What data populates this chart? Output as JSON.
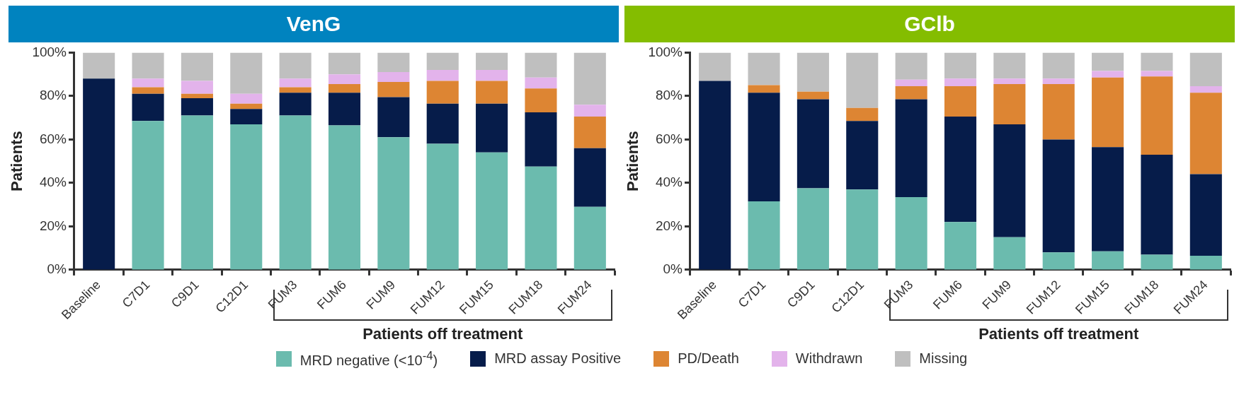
{
  "chart_data": [
    {
      "type": "bar",
      "title": "VenG",
      "ylabel": "Patients",
      "xlabel": "Patients off treatment",
      "stacked": true,
      "grid": false,
      "legend": "bottom",
      "categories": [
        "Baseline",
        "C7D1",
        "C9D1",
        "C12D1",
        "FUM3",
        "FUM6",
        "FUM9",
        "FUM12",
        "FUM15",
        "FUM18",
        "FUM24"
      ],
      "ylim": [
        0,
        100
      ],
      "yticks": [
        {
          "value": 0,
          "label": "0%"
        },
        {
          "value": 20,
          "label": "20%"
        },
        {
          "value": 40,
          "label": "40%"
        },
        {
          "value": 60,
          "label": "60%"
        },
        {
          "value": 80,
          "label": "80%"
        },
        {
          "value": 100,
          "label": "100%"
        }
      ],
      "series": [
        {
          "name": "MRD negative (<10$^{-4}$)",
          "color": "#6bbbae",
          "values": [
            0,
            68.5,
            71,
            67,
            71,
            66.5,
            61,
            58,
            54,
            47.5,
            29
          ]
        },
        {
          "name": "MRD assay Positive",
          "color": "#061c4a",
          "values": [
            88,
            12.5,
            8,
            7,
            10.5,
            15,
            18.5,
            18.5,
            22.5,
            25,
            27
          ]
        },
        {
          "name": "PD/Death",
          "color": "#dd8533",
          "values": [
            0,
            3,
            2,
            2.5,
            2.5,
            4,
            7,
            10.5,
            10.5,
            11,
            14.5
          ]
        },
        {
          "name": "Withdrawn",
          "color": "#e3b3eb",
          "values": [
            0,
            4,
            6,
            4.5,
            4,
            4.5,
            4.5,
            5,
            5,
            5,
            5.5
          ]
        },
        {
          "name": "Missing",
          "color": "#bfbfbf",
          "values": [
            12,
            12,
            13,
            19,
            12,
            10,
            9,
            8,
            8,
            11.5,
            24
          ]
        }
      ]
    },
    {
      "type": "bar",
      "title": "GClb",
      "ylabel": "Patients",
      "xlabel": "Patients off treatment",
      "stacked": true,
      "grid": false,
      "categories": [
        "Baseline",
        "C7D1",
        "C9D1",
        "C12D1",
        "FUM3",
        "FUM6",
        "FUM9",
        "FUM12",
        "FUM15",
        "FUM18",
        "FUM24"
      ],
      "ylim": [
        0,
        100
      ],
      "yticks": [
        {
          "value": 0,
          "label": "0%"
        },
        {
          "value": 20,
          "label": "20%"
        },
        {
          "value": 40,
          "label": "40%"
        },
        {
          "value": 60,
          "label": "60%"
        },
        {
          "value": 80,
          "label": "80%"
        },
        {
          "value": 100,
          "label": "100%"
        }
      ],
      "series": [
        {
          "color": "#6bbbae",
          "values": [
            0,
            31.5,
            37.5,
            37,
            33.5,
            22,
            15,
            8,
            8.5,
            7,
            6.5
          ]
        },
        {
          "color": "#061c4a",
          "values": [
            87,
            50,
            41,
            31.5,
            45,
            48.5,
            52,
            52,
            48,
            46,
            37.5
          ]
        },
        {
          "color": "#dd8533",
          "values": [
            0,
            3.5,
            3.5,
            6,
            6,
            14,
            18.5,
            25.5,
            32,
            36,
            37.5
          ]
        },
        {
          "color": "#e3b3eb",
          "values": [
            0,
            0,
            0,
            0,
            3,
            3.5,
            2.5,
            2.5,
            3,
            2.5,
            3
          ]
        },
        {
          "color": "#bfbfbf",
          "values": [
            13,
            15,
            18,
            25.5,
            12.5,
            12,
            12,
            12,
            8.5,
            8.5,
            15.5
          ]
        }
      ]
    }
  ]
}
